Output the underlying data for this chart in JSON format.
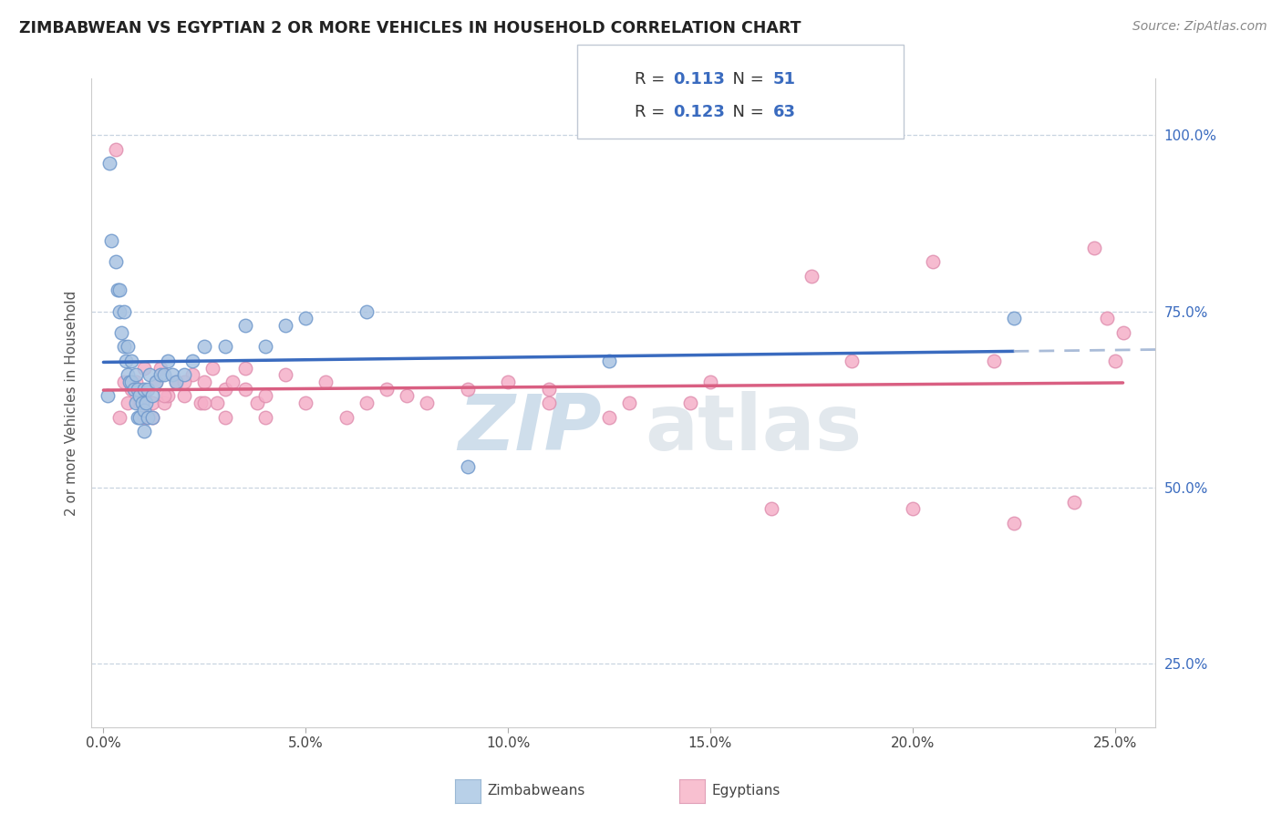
{
  "title": "ZIMBABWEAN VS EGYPTIAN 2 OR MORE VEHICLES IN HOUSEHOLD CORRELATION CHART",
  "source": "Source: ZipAtlas.com",
  "xlabel_vals": [
    0.0,
    5.0,
    10.0,
    15.0,
    20.0,
    25.0
  ],
  "ylabel_vals": [
    25.0,
    50.0,
    75.0,
    100.0
  ],
  "xlim": [
    -0.3,
    26.0
  ],
  "ylim": [
    16.0,
    108.0
  ],
  "legend_blue_R": "0.113",
  "legend_blue_N": "51",
  "legend_pink_R": "0.123",
  "legend_pink_N": "63",
  "blue_color": "#aac4e2",
  "pink_color": "#f5afc8",
  "blue_line_color": "#3a6bbf",
  "pink_line_color": "#d95f82",
  "dashed_line_color": "#aabcd8",
  "zimbabwean_x": [
    0.1,
    0.15,
    0.2,
    0.3,
    0.35,
    0.4,
    0.4,
    0.45,
    0.5,
    0.5,
    0.55,
    0.6,
    0.6,
    0.65,
    0.7,
    0.7,
    0.75,
    0.8,
    0.8,
    0.85,
    0.85,
    0.9,
    0.9,
    0.95,
    1.0,
    1.0,
    1.0,
    1.05,
    1.1,
    1.1,
    1.15,
    1.2,
    1.2,
    1.3,
    1.4,
    1.5,
    1.6,
    1.7,
    1.8,
    2.0,
    2.2,
    2.5,
    3.0,
    3.5,
    4.0,
    4.5,
    5.0,
    6.5,
    9.0,
    12.5,
    22.5
  ],
  "zimbabwean_y": [
    63,
    96,
    85,
    82,
    78,
    75,
    78,
    72,
    70,
    75,
    68,
    66,
    70,
    65,
    65,
    68,
    64,
    62,
    66,
    60,
    64,
    60,
    63,
    62,
    58,
    61,
    64,
    62,
    60,
    64,
    66,
    60,
    63,
    65,
    66,
    66,
    68,
    66,
    65,
    66,
    68,
    70,
    70,
    73,
    70,
    73,
    74,
    75,
    53,
    68,
    74
  ],
  "egyptian_x": [
    0.3,
    0.5,
    0.7,
    0.9,
    1.0,
    1.0,
    1.1,
    1.2,
    1.3,
    1.4,
    1.5,
    1.6,
    1.8,
    2.0,
    2.2,
    2.4,
    2.5,
    2.7,
    2.8,
    3.0,
    3.2,
    3.5,
    3.8,
    4.0,
    4.5,
    5.0,
    5.5,
    6.5,
    7.0,
    8.0,
    9.0,
    10.0,
    11.0,
    13.0,
    15.0,
    17.5,
    18.5,
    20.5,
    22.0,
    24.5,
    0.4,
    0.6,
    0.8,
    1.0,
    1.2,
    1.5,
    2.0,
    2.5,
    3.0,
    3.5,
    4.0,
    6.0,
    7.5,
    11.0,
    12.5,
    14.5,
    16.5,
    20.0,
    22.5,
    24.0,
    25.0,
    25.2,
    24.8
  ],
  "egyptian_y": [
    98,
    65,
    64,
    62,
    60,
    63,
    60,
    62,
    65,
    67,
    62,
    63,
    65,
    63,
    66,
    62,
    65,
    67,
    62,
    64,
    65,
    67,
    62,
    63,
    66,
    62,
    65,
    62,
    64,
    62,
    64,
    65,
    62,
    62,
    65,
    80,
    68,
    82,
    68,
    84,
    60,
    62,
    65,
    67,
    60,
    63,
    65,
    62,
    60,
    64,
    60,
    60,
    63,
    64,
    60,
    62,
    47,
    47,
    45,
    48,
    68,
    72,
    74
  ]
}
